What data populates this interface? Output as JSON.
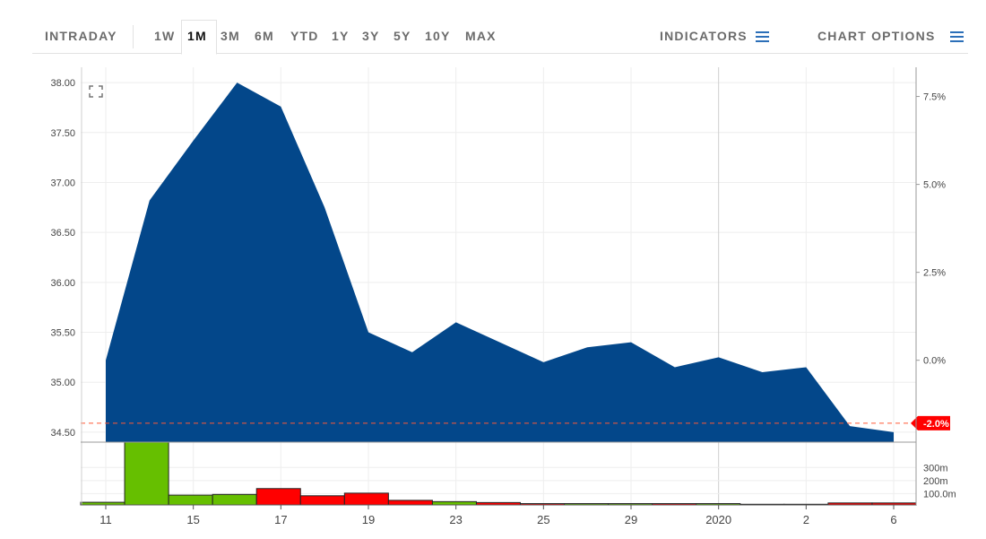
{
  "toolbar": {
    "ranges": [
      "INTRADAY",
      "1W",
      "1M",
      "3M",
      "6M",
      "YTD",
      "1Y",
      "3Y",
      "5Y",
      "10Y",
      "MAX"
    ],
    "active_range": "1M",
    "indicators_label": "INDICATORS",
    "chart_options_label": "CHART OPTIONS",
    "menu_icon": "hamburger-menu-icon",
    "expand_icon": "expand-corners-icon"
  },
  "colors": {
    "area_fill": "#03478a",
    "volume_up": "#66bf00",
    "volume_down": "#ff0000",
    "last_price_badge": "#ff0000",
    "grid": "#eeeeee"
  },
  "chart_data": {
    "type": "area",
    "x_tick_labels": [
      "11",
      "15",
      "17",
      "19",
      "23",
      "25",
      "29",
      "2020",
      "2",
      "6"
    ],
    "x_tick_index": [
      0,
      2,
      4,
      6,
      8,
      10,
      12,
      14,
      16,
      18
    ],
    "price": {
      "values": [
        35.22,
        36.82,
        37.42,
        38.0,
        37.76,
        36.75,
        35.5,
        35.3,
        35.6,
        35.4,
        35.2,
        35.35,
        35.4,
        35.15,
        35.25,
        35.1,
        35.15,
        34.56,
        34.5
      ],
      "ylim": [
        34.4,
        38.1
      ],
      "y_ticks": [
        "34.50",
        "35.00",
        "35.50",
        "36.00",
        "36.50",
        "37.00",
        "37.50",
        "38.00"
      ]
    },
    "percent_axis": {
      "base_price": 35.22,
      "ticks": [
        "-2.0%",
        "0.0%",
        "2.5%",
        "5.0%",
        "7.5%"
      ],
      "tick_values": [
        -2.0,
        0.0,
        2.5,
        5.0,
        7.5
      ],
      "last_label": "-2.0%"
    },
    "volume": {
      "values": [
        20,
        480,
        75,
        80,
        125,
        70,
        90,
        35,
        25,
        18,
        10,
        10,
        10,
        10,
        10,
        5,
        5,
        15,
        15
      ],
      "direction": [
        "up",
        "up",
        "up",
        "up",
        "down",
        "down",
        "down",
        "down",
        "up",
        "down",
        "down",
        "up",
        "up",
        "down",
        "up",
        "down",
        "down",
        "down",
        "down"
      ],
      "ylim": [
        0,
        480
      ],
      "y_ticks": [
        "100.0m",
        "200m",
        "300m"
      ],
      "y_tick_values": [
        100,
        200,
        300
      ]
    }
  }
}
